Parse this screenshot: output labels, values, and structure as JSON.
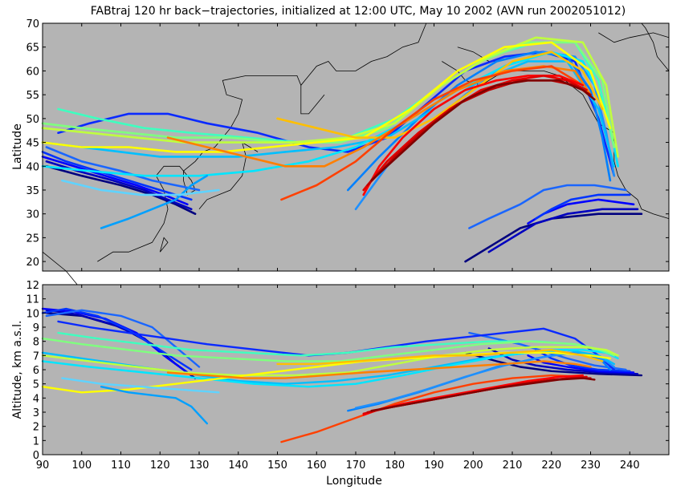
{
  "chart_data": {
    "title": "FABtraj 120 hr back−trajectories, initialized at 12:00 UTC, May 10 2002 (AVN run 2002051012)",
    "panels": [
      {
        "id": "map",
        "type": "line",
        "ylabel": "Latitude",
        "xlim": [
          90,
          250
        ],
        "ylim": [
          18,
          70
        ],
        "yticks": [
          "20",
          "25",
          "30",
          "35",
          "40",
          "45",
          "50",
          "55",
          "60",
          "65",
          "70"
        ],
        "background": "#b4b4b4"
      },
      {
        "id": "altitude",
        "type": "line",
        "ylabel": "Altitude, km a.s.l.",
        "xlabel": "Longitude",
        "xlim": [
          90,
          250
        ],
        "ylim": [
          0,
          12
        ],
        "xticks": [
          "90",
          "100",
          "110",
          "120",
          "130",
          "140",
          "150",
          "160",
          "170",
          "180",
          "190",
          "200",
          "210",
          "220",
          "230",
          "240"
        ],
        "yticks": [
          "0",
          "1",
          "2",
          "3",
          "4",
          "5",
          "6",
          "7",
          "8",
          "9",
          "10",
          "11",
          "12"
        ],
        "background": "#b4b4b4"
      }
    ],
    "series": [
      {
        "color": "#00007f",
        "lon": [
          243,
          232,
          220,
          212,
          206,
          198
        ],
        "lat": [
          30,
          30,
          29,
          27,
          24,
          20
        ],
        "alt": [
          5.6,
          5.7,
          5.9,
          6.2,
          6.6,
          7.2
        ]
      },
      {
        "color": "#0000bf",
        "lon": [
          242,
          233,
          224,
          216,
          210,
          204
        ],
        "lat": [
          31,
          31,
          30,
          28,
          25,
          22
        ],
        "alt": [
          5.7,
          5.8,
          6.0,
          6.3,
          6.7,
          7.5
        ]
      },
      {
        "color": "#0000ff",
        "lon": [
          241,
          232,
          224,
          218,
          214
        ],
        "lat": [
          32,
          33,
          32,
          30,
          28
        ],
        "alt": [
          5.8,
          5.9,
          6.2,
          6.5,
          7.0
        ]
      },
      {
        "color": "#0033ff",
        "lon": [
          240,
          232,
          225,
          220,
          216
        ],
        "lat": [
          34,
          34,
          33,
          31,
          29
        ],
        "alt": [
          5.9,
          6.0,
          6.3,
          6.8,
          7.4
        ]
      },
      {
        "color": "#1a66ff",
        "lon": [
          239,
          231,
          224,
          218,
          212,
          204,
          199
        ],
        "lat": [
          35,
          36,
          36,
          35,
          32,
          29,
          27
        ],
        "alt": [
          6.0,
          6.3,
          6.8,
          7.3,
          7.8,
          8.3,
          8.6
        ]
      },
      {
        "color": "#00007f",
        "lon": [
          129,
          124,
          118,
          110,
          100,
          91
        ],
        "lat": [
          30,
          32,
          34,
          36,
          38,
          40
        ],
        "alt": [
          5.4,
          6.4,
          7.8,
          9.0,
          9.8,
          10.0
        ]
      },
      {
        "color": "#0000bf",
        "lon": [
          128,
          122,
          116,
          108,
          99,
          91
        ],
        "lat": [
          31,
          33,
          35,
          37,
          39,
          41
        ],
        "alt": [
          5.6,
          6.8,
          8.2,
          9.2,
          9.9,
          10.2
        ]
      },
      {
        "color": "#0000ff",
        "lon": [
          127,
          121,
          114,
          106,
          98,
          90
        ],
        "lat": [
          32,
          34,
          36,
          38,
          40,
          42
        ],
        "alt": [
          5.8,
          7.0,
          8.6,
          9.6,
          10.1,
          10.3
        ]
      },
      {
        "color": "#0033ff",
        "lon": [
          128,
          120,
          112,
          104,
          96,
          90
        ],
        "lat": [
          33,
          35,
          37,
          39,
          41,
          43
        ],
        "alt": [
          6.0,
          7.4,
          8.8,
          9.8,
          10.3,
          10.0
        ]
      },
      {
        "color": "#1a66ff",
        "lon": [
          130,
          124,
          118,
          110,
          100,
          91
        ],
        "lat": [
          35,
          36,
          37,
          39,
          41,
          44
        ],
        "alt": [
          6.2,
          7.6,
          9.0,
          9.8,
          10.2,
          9.8
        ]
      },
      {
        "color": "#0a2aff",
        "lon": [
          94,
          102,
          112,
          122,
          132,
          145,
          158,
          168,
          178,
          188,
          198,
          208,
          218,
          226,
          232,
          236
        ],
        "lat": [
          47,
          49,
          51,
          51,
          49,
          47,
          44,
          43,
          46,
          53,
          60,
          63,
          64,
          62,
          50,
          38
        ],
        "alt": [
          9.4,
          9.0,
          8.6,
          8.2,
          7.8,
          7.4,
          7.0,
          7.2,
          7.6,
          8.0,
          8.3,
          8.6,
          8.9,
          8.2,
          7.0,
          6.0
        ]
      },
      {
        "color": "#0080ff",
        "lon": [
          168,
          176,
          186,
          196,
          206,
          216,
          224,
          230,
          233,
          235
        ],
        "lat": [
          35,
          42,
          50,
          57,
          62,
          64,
          63,
          56,
          46,
          37
        ],
        "alt": [
          3.1,
          3.6,
          4.4,
          5.3,
          6.2,
          6.8,
          7.2,
          7.0,
          6.6,
          6.0
        ]
      },
      {
        "color": "#1e90ff",
        "lon": [
          170,
          178,
          188,
          198,
          208,
          218,
          226,
          231,
          234,
          236
        ],
        "lat": [
          31,
          40,
          48,
          55,
          61,
          64,
          63,
          57,
          47,
          38
        ],
        "alt": [
          3.3,
          3.8,
          4.6,
          5.5,
          6.3,
          6.9,
          7.2,
          7.0,
          6.6,
          6.2
        ]
      },
      {
        "color": "#00bfff",
        "lon": [
          90,
          100,
          110,
          120,
          130,
          140,
          152,
          165,
          178,
          190,
          202,
          214,
          224,
          232,
          236
        ],
        "lat": [
          45,
          44,
          43,
          42,
          42,
          42,
          43,
          44,
          46,
          52,
          58,
          62,
          62,
          52,
          40
        ],
        "alt": [
          7.2,
          6.8,
          6.4,
          6.0,
          5.6,
          5.2,
          5.0,
          5.2,
          5.6,
          6.2,
          6.8,
          7.2,
          7.4,
          7.0,
          6.4
        ]
      },
      {
        "color": "#00e5ff",
        "lon": [
          90,
          102,
          116,
          130,
          144,
          158,
          170,
          182,
          196,
          208,
          220,
          228,
          234,
          237
        ],
        "lat": [
          40,
          39,
          38,
          38,
          39,
          41,
          44,
          49,
          56,
          61,
          64,
          62,
          52,
          40
        ],
        "alt": [
          6.6,
          6.2,
          5.8,
          5.4,
          5.0,
          4.8,
          5.0,
          5.6,
          6.4,
          7.0,
          7.4,
          7.4,
          7.2,
          6.8
        ]
      },
      {
        "color": "#3fffbf",
        "lon": [
          94,
          104,
          116,
          128,
          142,
          156,
          168,
          180,
          192,
          204,
          216,
          226,
          232,
          236
        ],
        "lat": [
          52,
          50,
          48,
          47,
          46,
          45,
          46,
          50,
          57,
          63,
          66,
          66,
          58,
          44
        ],
        "alt": [
          8.6,
          8.2,
          7.8,
          7.4,
          7.2,
          7.0,
          7.2,
          7.6,
          7.8,
          8.0,
          8.0,
          7.8,
          7.4,
          7.0
        ]
      },
      {
        "color": "#7fff7f",
        "lon": [
          90,
          100,
          112,
          124,
          138,
          152,
          166,
          178,
          190,
          202,
          214,
          226,
          233,
          236
        ],
        "lat": [
          49,
          48,
          47,
          46,
          46,
          45,
          45,
          48,
          56,
          62,
          66,
          66,
          58,
          44
        ],
        "alt": [
          8.2,
          7.8,
          7.4,
          7.0,
          6.8,
          6.6,
          6.6,
          7.0,
          7.4,
          7.8,
          8.0,
          7.8,
          7.4,
          7.0
        ]
      },
      {
        "color": "#bfff3f",
        "lon": [
          90,
          102,
          114,
          126,
          140,
          154,
          168,
          180,
          192,
          204,
          216,
          228,
          234,
          237
        ],
        "lat": [
          48,
          47,
          46,
          45,
          45,
          45,
          46,
          49,
          57,
          63,
          67,
          66,
          57,
          42
        ],
        "alt": [
          7.0,
          6.6,
          6.2,
          5.8,
          5.6,
          5.6,
          5.8,
          6.4,
          7.0,
          7.4,
          7.6,
          7.6,
          7.4,
          7.0
        ]
      },
      {
        "color": "#ffff00",
        "lon": [
          90,
          100,
          112,
          124,
          136,
          148,
          160,
          172,
          184,
          196,
          208,
          220,
          230,
          235
        ],
        "lat": [
          45,
          44,
          44,
          43,
          43,
          44,
          45,
          46,
          52,
          60,
          65,
          66,
          60,
          48
        ],
        "alt": [
          4.8,
          4.4,
          4.6,
          5.0,
          5.4,
          5.8,
          6.2,
          6.6,
          6.8,
          7.0,
          7.2,
          7.2,
          7.0,
          6.8
        ]
      },
      {
        "color": "#ffbf00",
        "lon": [
          150,
          160,
          170,
          180,
          190,
          200,
          210,
          220,
          228,
          233
        ],
        "lat": [
          50,
          48,
          46,
          46,
          50,
          56,
          62,
          64,
          60,
          52
        ],
        "alt": [
          6.4,
          6.4,
          6.6,
          6.8,
          7.0,
          7.0,
          7.2,
          7.4,
          7.0,
          6.6
        ]
      },
      {
        "color": "#ff7f00",
        "lon": [
          122,
          132,
          142,
          152,
          162,
          172,
          184,
          196,
          208,
          218,
          226,
          230
        ],
        "lat": [
          46,
          44,
          42,
          40,
          40,
          44,
          50,
          56,
          60,
          61,
          60,
          55
        ],
        "alt": [
          5.8,
          5.6,
          5.4,
          5.4,
          5.6,
          5.8,
          6.0,
          6.2,
          6.4,
          6.6,
          6.4,
          6.2
        ]
      },
      {
        "color": "#ff4000",
        "lon": [
          151,
          160,
          170,
          180,
          190,
          200,
          210,
          220,
          228
        ],
        "lat": [
          33,
          36,
          41,
          48,
          54,
          58,
          60,
          61,
          57
        ],
        "alt": [
          0.9,
          1.6,
          2.6,
          3.6,
          4.4,
          5.0,
          5.4,
          5.6,
          5.5
        ]
      },
      {
        "color": "#ff0000",
        "lon": [
          172,
          176,
          182,
          190,
          198,
          206,
          214,
          222,
          228
        ],
        "lat": [
          34,
          40,
          46,
          52,
          56,
          58,
          59,
          59,
          57
        ],
        "alt": [
          2.8,
          3.2,
          3.6,
          4.0,
          4.4,
          4.8,
          5.2,
          5.5,
          5.6
        ]
      },
      {
        "color": "#df0000",
        "lon": [
          172,
          178,
          186,
          194,
          202,
          210,
          218,
          224,
          229
        ],
        "lat": [
          35,
          41,
          47,
          52,
          56,
          58,
          59,
          58,
          56
        ],
        "alt": [
          2.9,
          3.3,
          3.7,
          4.1,
          4.5,
          4.9,
          5.2,
          5.4,
          5.5
        ]
      },
      {
        "color": "#bf0000",
        "lon": [
          173,
          180,
          188,
          196,
          204,
          212,
          220,
          226,
          230
        ],
        "lat": [
          36,
          42,
          48,
          53,
          56,
          58,
          58,
          57,
          55
        ],
        "alt": [
          3.0,
          3.4,
          3.8,
          4.2,
          4.6,
          5.0,
          5.3,
          5.4,
          5.4
        ]
      },
      {
        "color": "#7f0000",
        "lon": [
          174,
          182,
          190,
          198,
          206,
          214,
          222,
          228,
          231
        ],
        "lat": [
          37,
          43,
          49,
          54,
          57,
          58,
          58,
          56,
          54
        ],
        "alt": [
          3.1,
          3.5,
          3.9,
          4.3,
          4.7,
          5.0,
          5.3,
          5.4,
          5.3
        ]
      },
      {
        "color": "#00a0ff",
        "lon": [
          105,
          112,
          118,
          124,
          128,
          132
        ],
        "lat": [
          27,
          29,
          31,
          33,
          36,
          38
        ],
        "alt": [
          4.8,
          4.4,
          4.2,
          4.0,
          3.4,
          2.2
        ]
      },
      {
        "color": "#5fd3ff",
        "lon": [
          95,
          105,
          115,
          125,
          135
        ],
        "lat": [
          37,
          35,
          34,
          34,
          35
        ],
        "alt": [
          5.4,
          5.0,
          4.8,
          4.6,
          4.4
        ]
      }
    ]
  }
}
